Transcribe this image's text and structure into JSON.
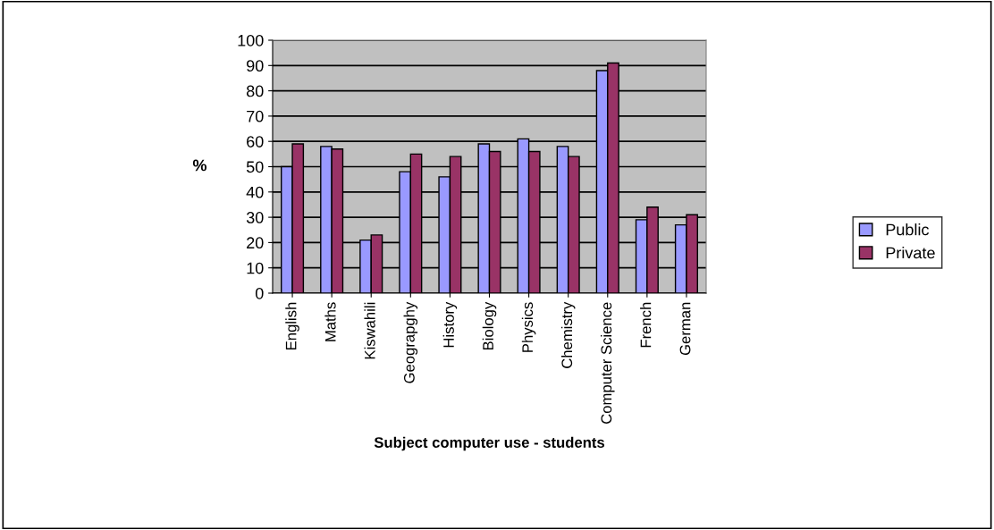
{
  "chart_data": {
    "type": "bar",
    "xlabel": "Subject computer use - students",
    "ylabel": "%",
    "categories": [
      "English",
      "Maths",
      "Kiswahili",
      "Geograpghy",
      "History",
      "Biology",
      "Physics",
      "Chemistry",
      "Computer Science",
      "French",
      "German"
    ],
    "series": [
      {
        "name": "Public",
        "color": "#9999ff",
        "values": [
          50,
          58,
          21,
          48,
          46,
          59,
          61,
          58,
          88,
          29,
          27
        ]
      },
      {
        "name": "Private",
        "color": "#993366",
        "values": [
          59,
          57,
          23,
          55,
          54,
          56,
          56,
          54,
          91,
          34,
          31
        ]
      }
    ],
    "ylim": [
      0,
      100
    ],
    "yticks": [
      0,
      10,
      20,
      30,
      40,
      50,
      60,
      70,
      80,
      90,
      100
    ],
    "grid": "y",
    "legend": "right"
  }
}
